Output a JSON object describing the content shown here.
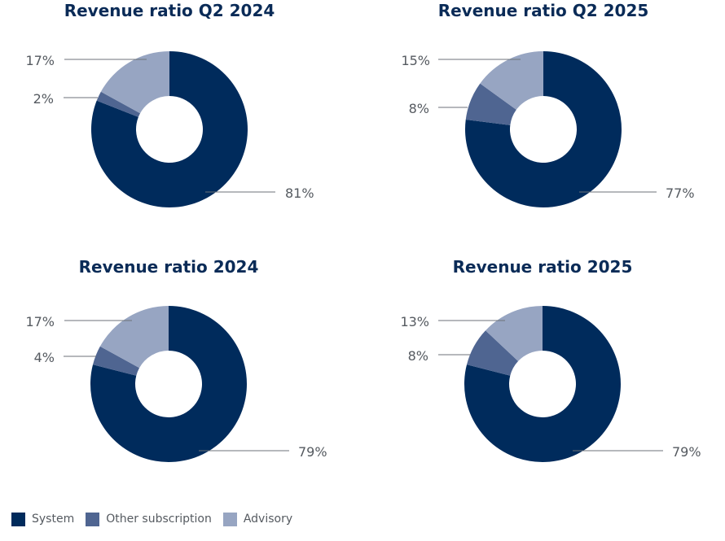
{
  "colors": {
    "System": "#002b5c",
    "Other subscription": "#4f6591",
    "Advisory": "#97a5c2",
    "title": "#0a2b57",
    "label": "#555a60"
  },
  "legend": {
    "items": [
      {
        "label": "System",
        "color": "#002b5c"
      },
      {
        "label": "Other subscription",
        "color": "#4f6591"
      },
      {
        "label": "Advisory",
        "color": "#97a5c2"
      }
    ]
  },
  "chart_data": [
    {
      "type": "pie",
      "title": "Revenue ratio Q2 2024",
      "categories": [
        "System",
        "Other subscription",
        "Advisory"
      ],
      "values": [
        81,
        2,
        17
      ],
      "labels": [
        "81%",
        "2%",
        "17%"
      ]
    },
    {
      "type": "pie",
      "title": "Revenue ratio Q2 2025",
      "categories": [
        "System",
        "Other subscription",
        "Advisory"
      ],
      "values": [
        77,
        8,
        15
      ],
      "labels": [
        "77%",
        "8%",
        "15%"
      ]
    },
    {
      "type": "pie",
      "title": "Revenue ratio 2024",
      "categories": [
        "System",
        "Other subscription",
        "Advisory"
      ],
      "values": [
        79,
        4,
        17
      ],
      "labels": [
        "79%",
        "4%",
        "17%"
      ]
    },
    {
      "type": "pie",
      "title": "Revenue ratio 2025",
      "categories": [
        "System",
        "Other subscription",
        "Advisory"
      ],
      "values": [
        79,
        8,
        13
      ],
      "labels": [
        "79%",
        "8%",
        "13%"
      ]
    }
  ]
}
